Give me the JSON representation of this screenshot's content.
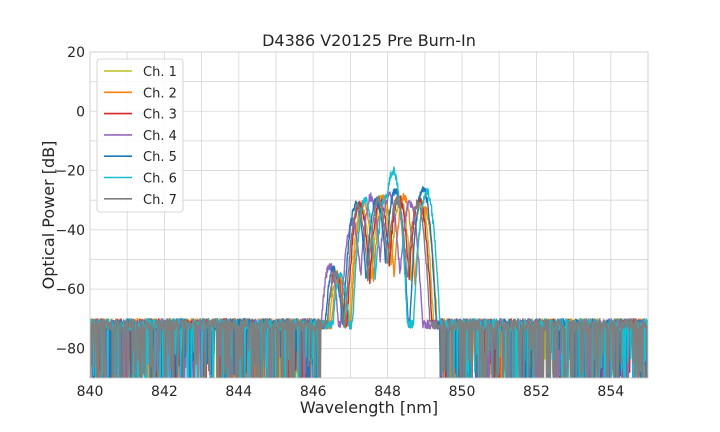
{
  "chart_data": {
    "type": "line",
    "title": "D4386 V20125 Pre Burn-In",
    "xlabel": "Wavelength [nm]",
    "ylabel": "Optical Power [dB]",
    "xlim": [
      840,
      855
    ],
    "ylim": [
      -90,
      20
    ],
    "xticks": [
      840,
      842,
      844,
      846,
      848,
      850,
      852,
      854
    ],
    "yticks": [
      -80,
      -60,
      -40,
      -20,
      0,
      20
    ],
    "grid": true,
    "legend_position": "top-left",
    "noise_floor_db": -72,
    "series": [
      {
        "name": "Ch. 1",
        "color": "#bcbd22",
        "peaks": [
          [
            846.65,
            -55
          ],
          [
            847.3,
            -33
          ],
          [
            847.85,
            -29
          ],
          [
            848.35,
            -30
          ],
          [
            848.9,
            -31
          ]
        ]
      },
      {
        "name": "Ch. 2",
        "color": "#ff7f0e",
        "peaks": [
          [
            846.7,
            -56
          ],
          [
            847.35,
            -31
          ],
          [
            847.9,
            -29
          ],
          [
            848.45,
            -29
          ],
          [
            849.0,
            -33
          ]
        ]
      },
      {
        "name": "Ch. 3",
        "color": "#d62728",
        "peaks": [
          [
            846.6,
            -54
          ],
          [
            847.25,
            -31
          ],
          [
            847.8,
            -30
          ],
          [
            848.3,
            -29
          ],
          [
            848.85,
            -30
          ]
        ]
      },
      {
        "name": "Ch. 4",
        "color": "#9467bd",
        "peaks": [
          [
            846.45,
            -52
          ],
          [
            847.05,
            -37
          ],
          [
            847.55,
            -29
          ],
          [
            848.05,
            -28
          ],
          [
            848.6,
            -31
          ]
        ]
      },
      {
        "name": "Ch. 5",
        "color": "#1f77b4",
        "peaks": [
          [
            846.55,
            -53
          ],
          [
            847.15,
            -31
          ],
          [
            847.7,
            -30
          ],
          [
            848.2,
            -27
          ],
          [
            848.95,
            -26
          ]
        ]
      },
      {
        "name": "Ch. 6",
        "color": "#17becf",
        "peaks": [
          [
            846.75,
            -55
          ],
          [
            847.4,
            -30
          ],
          [
            847.95,
            -29
          ],
          [
            848.15,
            -20
          ],
          [
            849.05,
            -27
          ]
        ]
      },
      {
        "name": "Ch. 7",
        "color": "#7f7f7f",
        "peaks": [
          [
            846.6,
            -55
          ],
          [
            847.2,
            -32
          ],
          [
            847.75,
            -30
          ],
          [
            848.25,
            -30
          ],
          [
            848.8,
            -31
          ]
        ]
      }
    ]
  }
}
